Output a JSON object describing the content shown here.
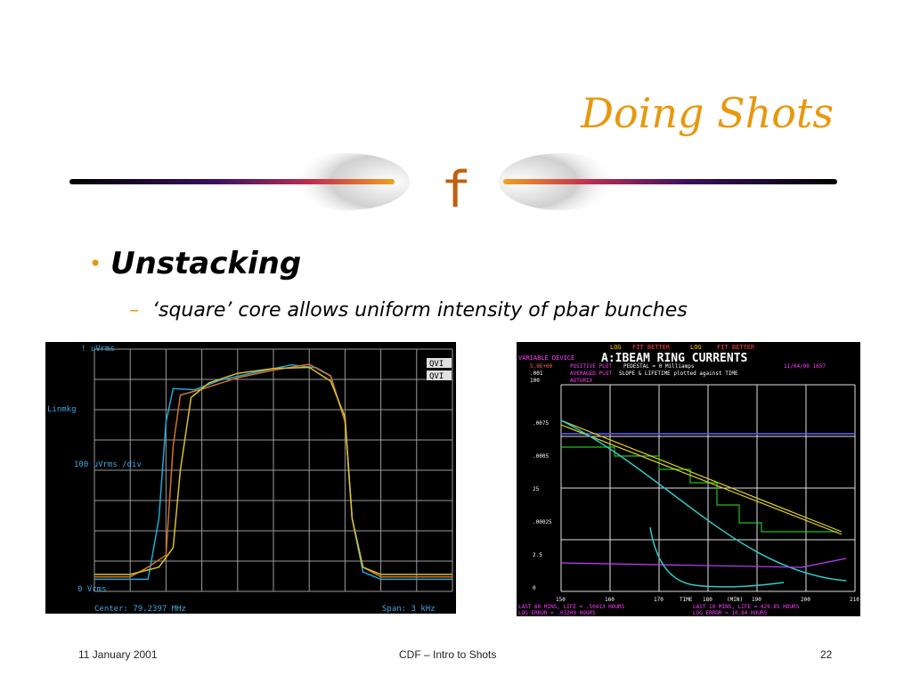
{
  "slide": {
    "title": "Doing Shots",
    "divider_glyph": "f",
    "bullet": "Unstacking",
    "sub_bullet": "‘square’ core allows uniform intensity of pbar bunches",
    "accent_color": "#e8980e",
    "bullet_marker": "•",
    "sub_marker": "–"
  },
  "footer": {
    "date": "11 January 2001",
    "center": "CDF – Intro to Shots",
    "page": "22"
  },
  "chart_data": [
    {
      "type": "line",
      "labels": {
        "top_left": "!\nuVrms",
        "scale": "Linmkg",
        "div": "100\nuVrms\n/div",
        "zero": "0\nVrms",
        "center": "Center: 79.2397 MHz",
        "span": "Span: 3 kHz",
        "marker1": "QVI",
        "marker2": "QVI"
      },
      "grid": true,
      "series": [
        {
          "color": "#20a8d8",
          "x": [
            0,
            0.1,
            0.15,
            0.18,
            0.2,
            0.22,
            0.28,
            0.35,
            0.45,
            0.55,
            0.62,
            0.66,
            0.7,
            0.72,
            0.75,
            0.8,
            0.9,
            1.0
          ],
          "y": [
            0.05,
            0.05,
            0.05,
            0.3,
            0.7,
            0.85,
            0.86,
            0.9,
            0.92,
            0.93,
            0.9,
            0.86,
            0.7,
            0.3,
            0.08,
            0.05,
            0.05,
            0.05
          ]
        },
        {
          "color": "#d07028",
          "x": [
            0,
            0.1,
            0.15,
            0.2,
            0.22,
            0.24,
            0.3,
            0.4,
            0.5,
            0.6,
            0.66,
            0.7,
            0.72,
            0.75,
            0.8,
            0.9,
            1.0
          ],
          "y": [
            0.06,
            0.06,
            0.1,
            0.15,
            0.6,
            0.84,
            0.86,
            0.89,
            0.9,
            0.91,
            0.86,
            0.7,
            0.3,
            0.1,
            0.06,
            0.06,
            0.06
          ]
        },
        {
          "color": "#d8c030",
          "x": [
            0,
            0.1,
            0.18,
            0.22,
            0.24,
            0.27,
            0.32,
            0.4,
            0.5,
            0.6,
            0.66,
            0.7,
            0.72,
            0.75,
            0.8,
            0.9,
            1.0
          ],
          "y": [
            0.07,
            0.07,
            0.1,
            0.18,
            0.5,
            0.8,
            0.86,
            0.88,
            0.89,
            0.9,
            0.86,
            0.72,
            0.3,
            0.1,
            0.07,
            0.07,
            0.07
          ]
        }
      ]
    },
    {
      "type": "line",
      "title": "A:IBEAM  RING CURRENTS",
      "header": {
        "log1": "LOG",
        "fit1": "FIT BETTER",
        "log2": "LOG",
        "fit2": "FIT BETTER",
        "variable": "VARIABLE DEVICE",
        "pedestal": "PEDESTAL = 0   Milliamps",
        "date": "11/04/00  1657",
        "positive": "POSITIVE PLOT",
        "averaged": "AVERAGED PLOT",
        "autorix": "AUTORIX",
        "slope_line": "SLOPE & LIFETIME plotted against TIME",
        "val1": "5.0E+00",
        "val2": ".001",
        "val3": "100"
      },
      "y_left_labels": [
        ".0075",
        ".0005",
        "25",
        ".00025",
        "2.5",
        "0"
      ],
      "x_ticks": [
        "150",
        "160",
        "170",
        "180",
        "190",
        "200",
        "210"
      ],
      "x_axis_label": "TIME",
      "x_unit": "(MIN)",
      "footer_left": "LAST 60    MINS, LIFE = .50413 HOURS",
      "footer_left2": "LOG      ERROR = .03209 HOURS",
      "footer_right": "LAST 10    MINS, LIFE = 429.85 HOURS",
      "footer_right2": "LOG      ERROR = 10.84  HOURS"
    }
  ]
}
